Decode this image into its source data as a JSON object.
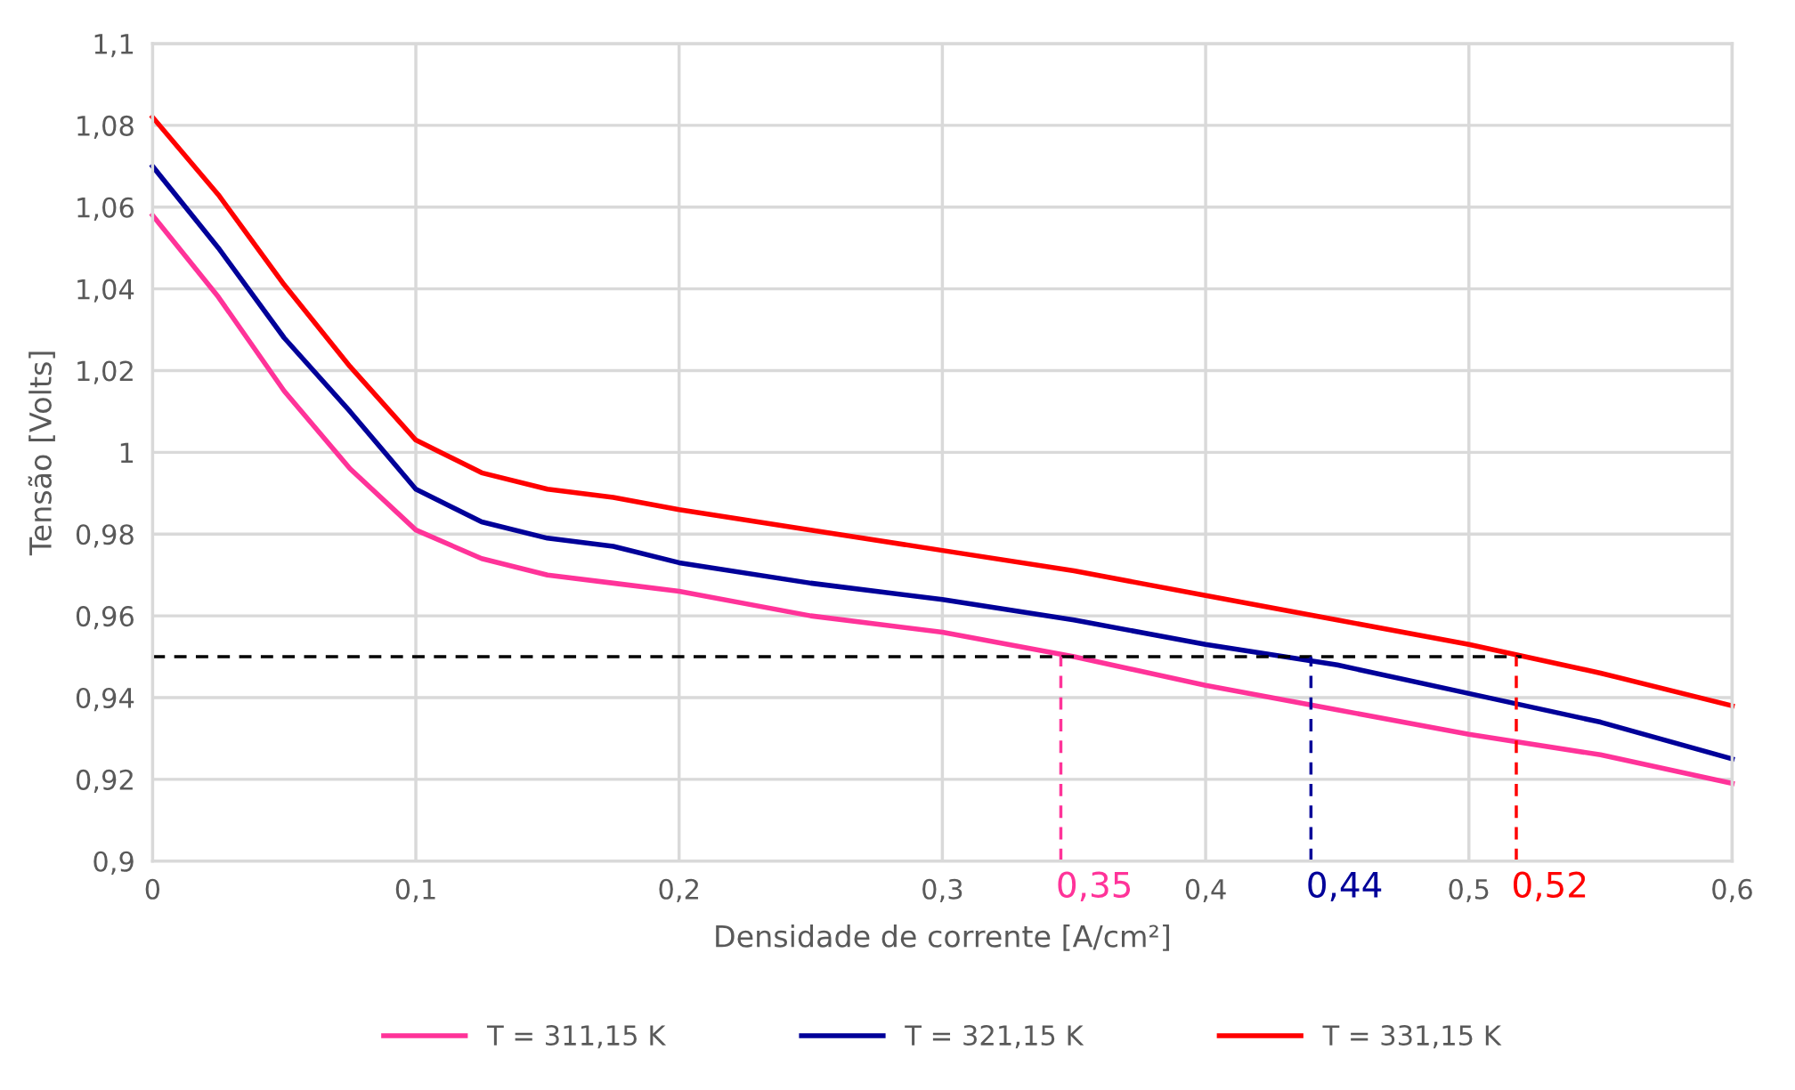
{
  "chart_data": {
    "type": "line",
    "xlabel": "Densidade de corrente [A/cm²]",
    "ylabel": "Tensão [Volts]",
    "xlim": [
      0,
      0.6
    ],
    "ylim": [
      0.9,
      1.1
    ],
    "xticks": [
      0,
      {
        "value": 0.1,
        "label": "0,1"
      },
      {
        "value": 0.2,
        "label": "0,2"
      },
      {
        "value": 0.3,
        "label": "0,3"
      },
      {
        "value": 0.4,
        "label": "0,4"
      },
      {
        "value": 0.5,
        "label": "0,5"
      },
      {
        "value": 0.6,
        "label": "0,6"
      }
    ],
    "yticks": [
      {
        "value": 0.9,
        "label": "0,9"
      },
      {
        "value": 0.92,
        "label": "0,92"
      },
      {
        "value": 0.94,
        "label": "0,94"
      },
      {
        "value": 0.96,
        "label": "0,96"
      },
      {
        "value": 0.98,
        "label": "0,98"
      },
      1,
      {
        "value": 1.02,
        "label": "1,02"
      },
      {
        "value": 1.04,
        "label": "1,04"
      },
      {
        "value": 1.06,
        "label": "1,06"
      },
      {
        "value": 1.08,
        "label": "1,08"
      },
      {
        "value": 1.1,
        "label": "1,1"
      }
    ],
    "grid": true,
    "legend": "bottom",
    "line_style": "solid",
    "x": [
      0,
      0.025,
      0.05,
      0.075,
      0.1,
      0.125,
      0.15,
      0.175,
      0.2,
      0.25,
      0.3,
      0.35,
      0.4,
      0.45,
      0.5,
      0.55,
      0.6
    ],
    "series": [
      {
        "name": "T = 311,15 K",
        "color": "#ff3399",
        "values": [
          1.058,
          1.038,
          1.015,
          0.996,
          0.981,
          0.974,
          0.97,
          0.968,
          0.966,
          0.96,
          0.956,
          0.95,
          0.943,
          0.937,
          0.931,
          0.926,
          0.919
        ]
      },
      {
        "name": "T = 321,15 K",
        "color": "#000099",
        "values": [
          1.07,
          1.05,
          1.028,
          1.01,
          0.991,
          0.983,
          0.979,
          0.977,
          0.973,
          0.968,
          0.964,
          0.959,
          0.953,
          0.948,
          0.941,
          0.934,
          0.925
        ]
      },
      {
        "name": "T = 331,15 K",
        "color": "#ff0000",
        "values": [
          1.082,
          1.063,
          1.041,
          1.021,
          1.003,
          0.995,
          0.991,
          0.989,
          0.986,
          0.981,
          0.976,
          0.971,
          0.965,
          0.959,
          0.953,
          0.946,
          0.938
        ]
      },
      {
        "color": "#000000",
        "line_style": "dashed",
        "x": [
          0,
          0.52
        ],
        "values": [
          0.95,
          0.95
        ]
      },
      {
        "color": "#ff3399",
        "line_style": "dashed",
        "x": [
          0.345,
          0.345
        ],
        "values": [
          0.9,
          0.95
        ]
      },
      {
        "color": "#000099",
        "line_style": "dashed",
        "x": [
          0.44,
          0.44
        ],
        "values": [
          0.9,
          0.95
        ]
      },
      {
        "color": "#ff0000",
        "line_style": "dashed",
        "x": [
          0.518,
          0.518
        ],
        "values": [
          0.9,
          0.95
        ]
      }
    ],
    "annotations": [
      {
        "text": "0,35",
        "x": 0.345,
        "y": 0.9
      },
      {
        "text": "0,44",
        "x": 0.44,
        "y": 0.9
      },
      {
        "text": "0,52",
        "x": 0.518,
        "y": 0.9
      }
    ]
  }
}
